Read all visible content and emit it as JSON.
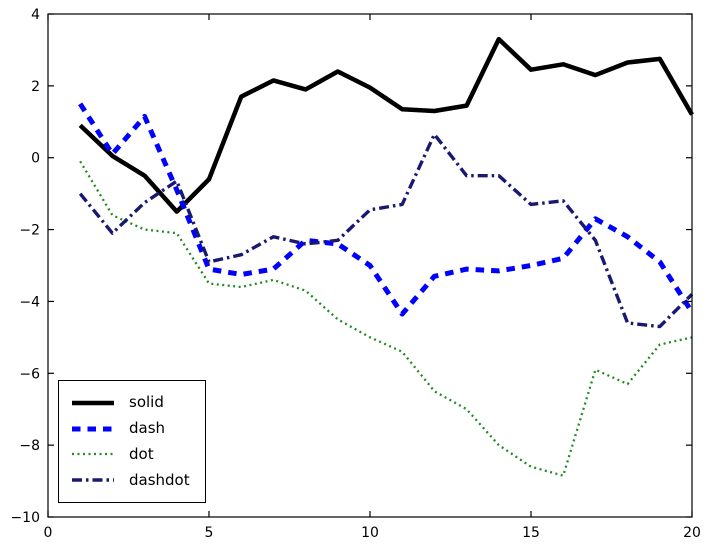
{
  "chart_data": {
    "type": "line",
    "title": "",
    "xlabel": "",
    "ylabel": "",
    "grid": false,
    "xlim": [
      0,
      20
    ],
    "ylim": [
      -10,
      4
    ],
    "xticks": {
      "values": [
        0,
        5,
        10,
        15,
        20
      ],
      "labels": [
        "0",
        "5",
        "10",
        "15",
        "20"
      ]
    },
    "yticks": {
      "values": [
        -10,
        -8,
        -6,
        -4,
        -2,
        0,
        2,
        4
      ],
      "labels": [
        "−10",
        "−8",
        "−6",
        "−4",
        "−2",
        "0",
        "2",
        "4"
      ]
    },
    "x": [
      1,
      2,
      3,
      4,
      5,
      6,
      7,
      8,
      9,
      10,
      11,
      12,
      13,
      14,
      15,
      16,
      17,
      18,
      19,
      20
    ],
    "series": [
      {
        "name": "solid",
        "linestyle": "solid",
        "color": "#000000",
        "width": 4.5,
        "dash": "",
        "values": [
          0.9,
          0.05,
          -0.5,
          -1.5,
          -0.6,
          1.7,
          2.15,
          1.9,
          2.4,
          1.95,
          1.35,
          1.3,
          1.45,
          3.3,
          2.45,
          2.6,
          2.3,
          2.65,
          2.75,
          1.2
        ]
      },
      {
        "name": "dash",
        "linestyle": "dashed",
        "color": "#0000ff",
        "width": 5,
        "dash": "8.5,7",
        "values": [
          1.5,
          0.1,
          1.15,
          -0.9,
          -3.1,
          -3.25,
          -3.1,
          -2.3,
          -2.4,
          -3.0,
          -4.35,
          -3.3,
          -3.1,
          -3.15,
          -3.0,
          -2.8,
          -1.7,
          -2.2,
          -2.9,
          -4.3
        ]
      },
      {
        "name": "dot",
        "linestyle": "dotted",
        "color": "#228b22",
        "width": 2.3,
        "dash": "2,3.5",
        "values": [
          -0.1,
          -1.6,
          -2.0,
          -2.1,
          -3.5,
          -3.6,
          -3.4,
          -3.7,
          -4.5,
          -5.0,
          -5.4,
          -6.5,
          -7.0,
          -8.0,
          -8.6,
          -8.85,
          -5.9,
          -6.3,
          -5.2,
          -5.0
        ]
      },
      {
        "name": "dashdot",
        "linestyle": "dashdot",
        "color": "#191970",
        "width": 3.4,
        "dash": "10,4,2.5,4",
        "values": [
          -1.0,
          -2.1,
          -1.25,
          -0.65,
          -2.9,
          -2.7,
          -2.2,
          -2.4,
          -2.3,
          -1.45,
          -1.3,
          0.65,
          -0.5,
          -0.5,
          -1.3,
          -1.2,
          -2.3,
          -4.6,
          -4.7,
          -3.8
        ]
      }
    ],
    "legend": {
      "position": "lower-left",
      "entries": [
        "solid",
        "dash",
        "dot",
        "dashdot"
      ]
    }
  },
  "colors": {
    "background": "#ffffff",
    "frame": "#000000",
    "tick_label": "#000000"
  }
}
